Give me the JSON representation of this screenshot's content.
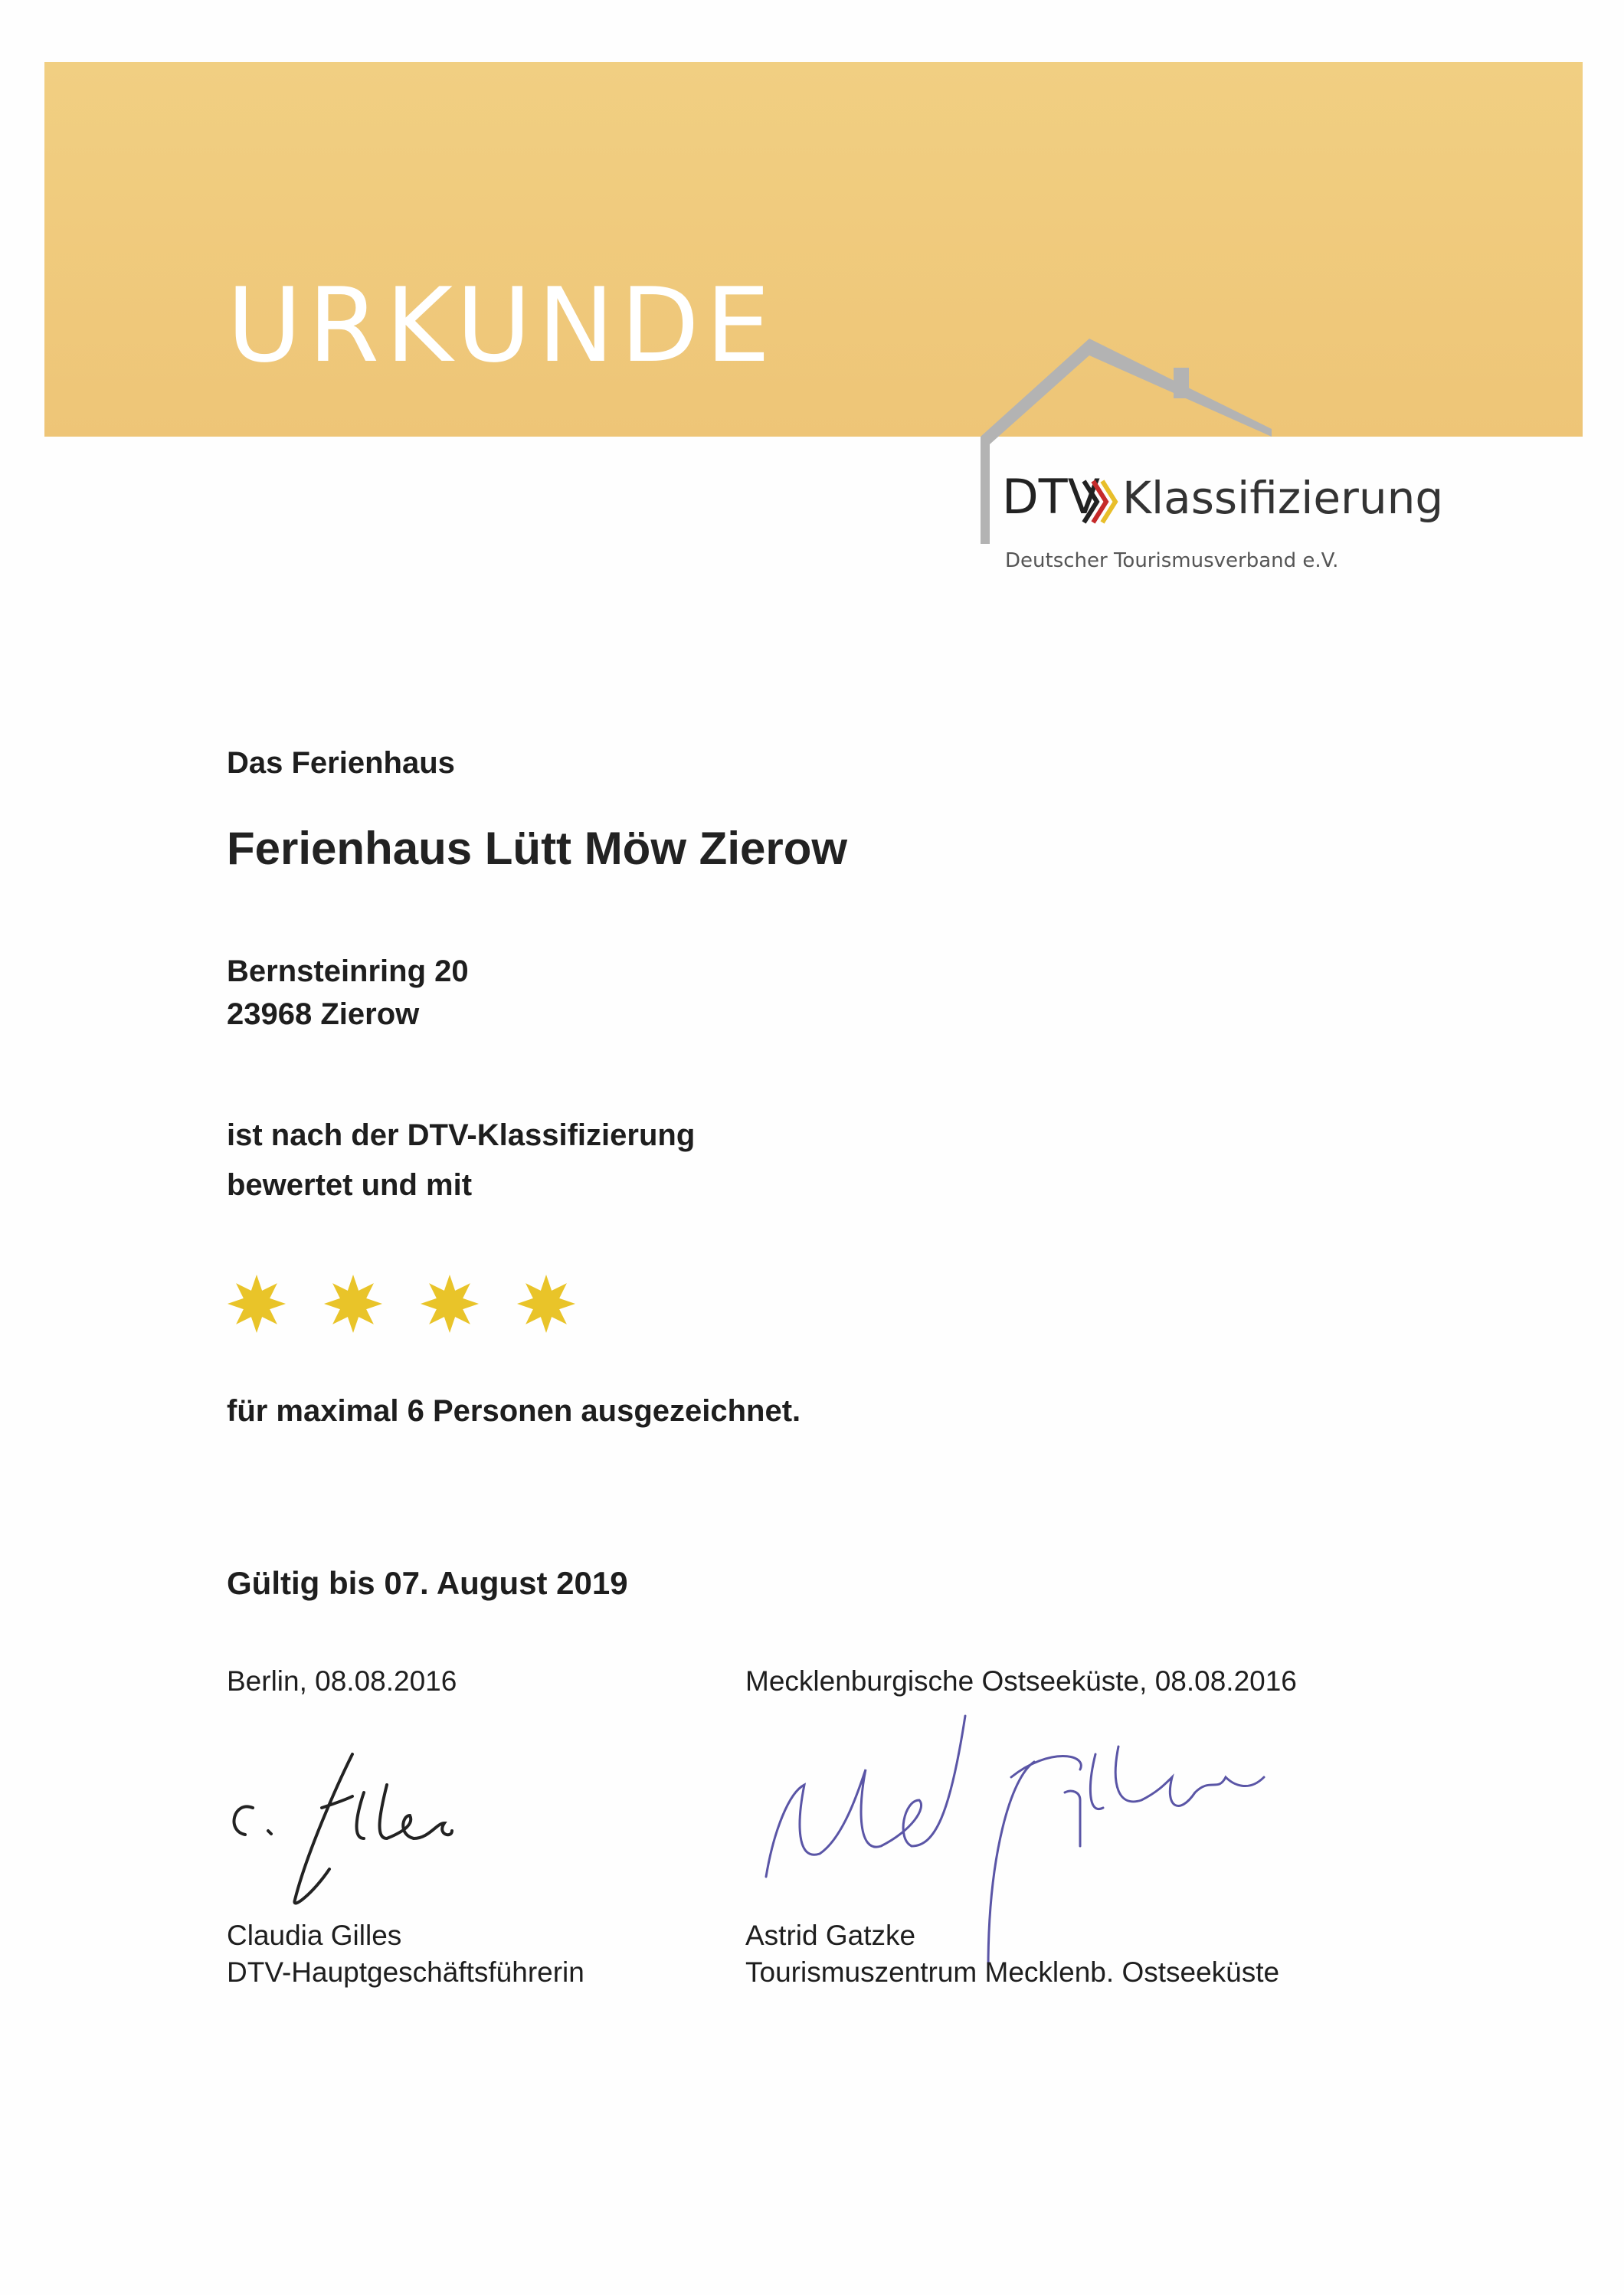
{
  "header": {
    "title": "URKUNDE",
    "banner_color": "#efc97b"
  },
  "logo": {
    "brand": "DTV",
    "name": "Klassifizierung",
    "org": "Deutscher Tourismusverband e.V."
  },
  "body": {
    "intro": "Das Ferienhaus",
    "property_name": "Ferienhaus Lütt Möw Zierow",
    "address_line1": "Bernsteinring 20",
    "address_line2": "23968 Zierow",
    "rated_line1": "ist nach der DTV-Klassifizierung",
    "rated_line2": "bewertet und mit",
    "stars": 4,
    "star_color": "#e9c429",
    "award_line": "für maximal 6 Personen ausgezeichnet.",
    "valid": "Gültig bis 07. August 2019"
  },
  "signatures": [
    {
      "place_date": "Berlin, 08.08.2016",
      "name": "Claudia Gilles",
      "role": "DTV-Hauptgeschäftsführerin"
    },
    {
      "place_date": "Mecklenburgische Ostseeküste, 08.08.2016",
      "name": "Astrid Gatzke",
      "role": "Tourismuszentrum Mecklenb. Ostseeküste"
    }
  ]
}
